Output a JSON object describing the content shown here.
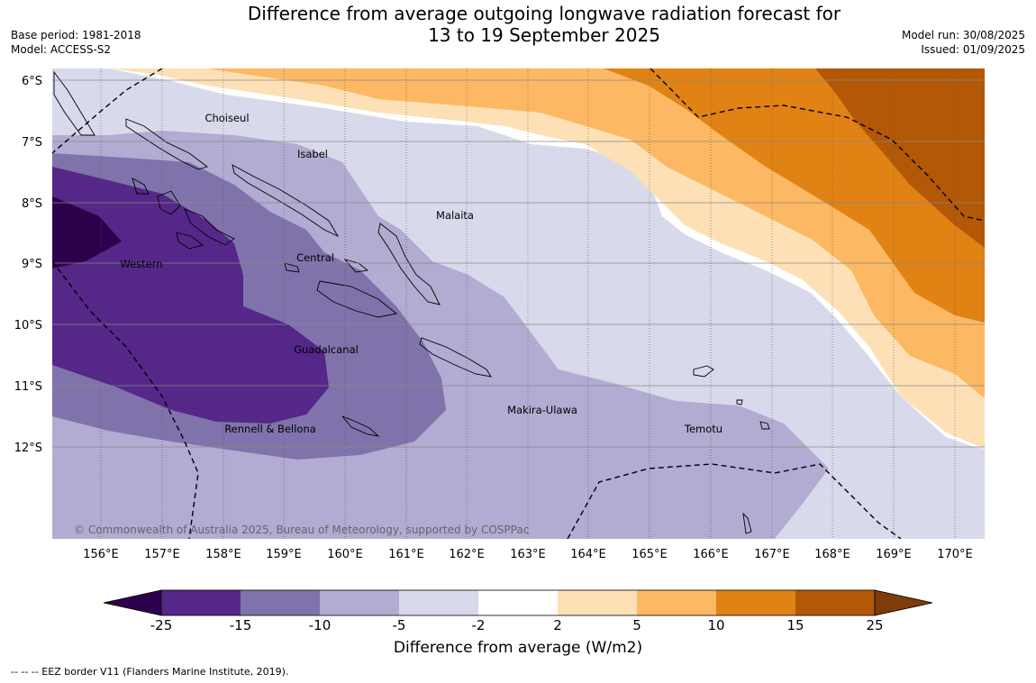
{
  "header": {
    "title_line1": "Difference from average outgoing longwave radiation forecast for",
    "title_line2": "13 to 19 September 2025",
    "base_period": "Base period: 1981-2018",
    "model": "Model: ACCESS-S2",
    "model_run": "Model run: 30/08/2025",
    "issued": "Issued: 01/09/2025"
  },
  "map": {
    "lat_labels": [
      "6°S",
      "7°S",
      "8°S",
      "9°S",
      "10°S",
      "11°S",
      "12°S"
    ],
    "lon_labels": [
      "156°E",
      "157°E",
      "158°E",
      "159°E",
      "160°E",
      "161°E",
      "162°E",
      "163°E",
      "164°E",
      "165°E",
      "166°E",
      "167°E",
      "168°E",
      "169°E",
      "170°E"
    ],
    "places": [
      "Choiseul",
      "Isabel",
      "Malaita",
      "Western",
      "Central",
      "Guadalcanal",
      "Rennell & Bellona",
      "Makira-Ulawa",
      "Temotu"
    ],
    "copyright": "© Commonwealth of Australia 2025, Bureau of Meteorology, supported by COSPPac"
  },
  "colorbar": {
    "title": "Difference from average (W/m2)",
    "ticks": [
      "-25",
      "-15",
      "-10",
      "-5",
      "-2",
      "2",
      "5",
      "10",
      "15",
      "25"
    ],
    "colors": [
      "#2d004b",
      "#542788",
      "#8073ac",
      "#b2abd2",
      "#d8daeb",
      "#ffffff",
      "#fee0b6",
      "#fdb863",
      "#e08214",
      "#b35806",
      "#7f3b08"
    ]
  },
  "legend": {
    "eez": "--  --  -- EEZ border V11 (Flanders Marine Institute, 2019)."
  }
}
